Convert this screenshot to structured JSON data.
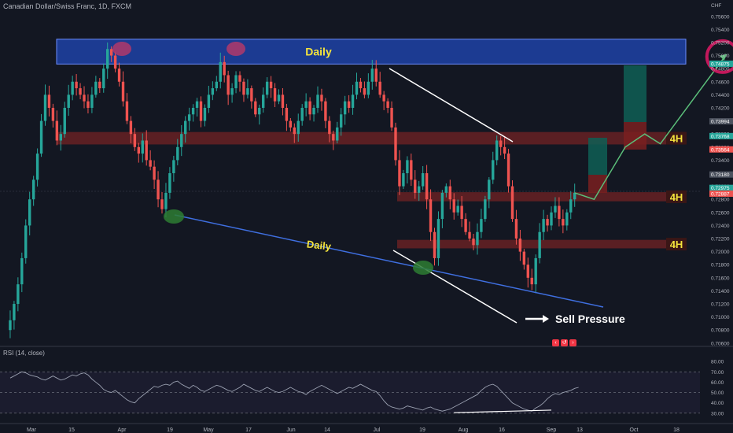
{
  "symbol": {
    "title": "Canadian Dollar/Swiss Franc, 1D, FXCM"
  },
  "rsi": {
    "title": "RSI (14, close)",
    "ticks": [
      "80.00",
      "70.00",
      "60.00",
      "50.00",
      "40.00",
      "30.00"
    ],
    "tick_values": [
      80,
      70,
      60,
      50,
      40,
      30
    ]
  },
  "colors": {
    "background": "#131722",
    "bull": "#26a69a",
    "bear": "#ef5350",
    "zone_daily": "#1e3f9e",
    "zone_4h": "#8b2525",
    "trend_white": "#ffffff",
    "trend_blue": "#3f6fe0",
    "projection": "#5bbf7a",
    "label_yellow": "#f5e43c"
  },
  "chart_data": {
    "type": "candlestick",
    "currency": "CHF",
    "x_ticks": [
      "Mar",
      "15",
      "Apr",
      "19",
      "May",
      "17",
      "Jun",
      "14",
      "Jul",
      "19",
      "Aug",
      "16",
      "Sep",
      "13",
      "Oct",
      "18"
    ],
    "y_ticks": [
      "0.75600",
      "0.75400",
      "0.75200",
      "0.75000",
      "0.74800",
      "0.74600",
      "0.74400",
      "0.74200",
      "0.74000",
      "0.73800",
      "0.73600",
      "0.73400",
      "0.73200",
      "0.73000",
      "0.72800",
      "0.72600",
      "0.72400",
      "0.72200",
      "0.72000",
      "0.71800",
      "0.71600",
      "0.71400",
      "0.71200",
      "0.71000",
      "0.70800",
      "0.70600"
    ],
    "y_tick_values": [
      0.756,
      0.754,
      0.752,
      0.75,
      0.748,
      0.746,
      0.744,
      0.742,
      0.74,
      0.738,
      0.736,
      0.734,
      0.732,
      0.73,
      0.728,
      0.726,
      0.724,
      0.722,
      0.72,
      0.718,
      0.716,
      0.714,
      0.712,
      0.71,
      0.708,
      0.706
    ],
    "ylim": [
      0.7055,
      0.7585
    ],
    "price_tags": [
      {
        "text": "0.74875",
        "value": 0.74875,
        "color": "#26a69a"
      },
      {
        "text": "0.73994",
        "value": 0.73994,
        "color": "#4c525e"
      },
      {
        "text": "0.73768",
        "value": 0.73768,
        "color": "#26a69a"
      },
      {
        "text": "0.73564",
        "value": 0.73564,
        "color": "#ef5350"
      },
      {
        "text": "0.73180",
        "value": 0.7318,
        "color": "#4c525e"
      },
      {
        "text": "0.72975",
        "value": 0.72975,
        "color": "#26a69a"
      },
      {
        "text": "0.72887",
        "value": 0.72887,
        "color": "#ef5350"
      }
    ],
    "zones": [
      {
        "label": "Daily",
        "low": 0.7487,
        "high": 0.7525,
        "color": "#1e3f9e"
      },
      {
        "label": "4H",
        "low": 0.7364,
        "high": 0.7383,
        "color": "#8b2525"
      },
      {
        "label": "4H",
        "low": 0.7277,
        "high": 0.7291,
        "color": "#8b2525"
      },
      {
        "label": "4H",
        "low": 0.7205,
        "high": 0.7218,
        "color": "#8b2525"
      }
    ],
    "annotations": {
      "daily_trendline_label": "Daily",
      "sell_pressure": "Sell Pressure"
    },
    "price_path": [
      0.708,
      0.7095,
      0.712,
      0.715,
      0.719,
      0.724,
      0.728,
      0.731,
      0.735,
      0.74,
      0.744,
      0.742,
      0.74,
      0.737,
      0.738,
      0.742,
      0.744,
      0.746,
      0.745,
      0.744,
      0.743,
      0.742,
      0.744,
      0.746,
      0.745,
      0.748,
      0.751,
      0.75,
      0.748,
      0.746,
      0.743,
      0.74,
      0.738,
      0.736,
      0.735,
      0.737,
      0.734,
      0.733,
      0.731,
      0.728,
      0.7265,
      0.729,
      0.732,
      0.734,
      0.736,
      0.738,
      0.74,
      0.741,
      0.742,
      0.743,
      0.74,
      0.742,
      0.744,
      0.745,
      0.746,
      0.749,
      0.747,
      0.744,
      0.745,
      0.747,
      0.746,
      0.744,
      0.745,
      0.743,
      0.741,
      0.742,
      0.744,
      0.746,
      0.745,
      0.743,
      0.744,
      0.742,
      0.74,
      0.739,
      0.738,
      0.74,
      0.742,
      0.743,
      0.741,
      0.742,
      0.744,
      0.743,
      0.74,
      0.738,
      0.737,
      0.739,
      0.741,
      0.743,
      0.742,
      0.744,
      0.746,
      0.745,
      0.744,
      0.746,
      0.748,
      0.746,
      0.744,
      0.743,
      0.742,
      0.739,
      0.734,
      0.73,
      0.732,
      0.734,
      0.731,
      0.729,
      0.73,
      0.732,
      0.728,
      0.723,
      0.719,
      0.725,
      0.729,
      0.73,
      0.728,
      0.726,
      0.727,
      0.725,
      0.723,
      0.722,
      0.721,
      0.723,
      0.725,
      0.728,
      0.731,
      0.734,
      0.737,
      0.736,
      0.735,
      0.73,
      0.725,
      0.722,
      0.72,
      0.718,
      0.716,
      0.715,
      0.719,
      0.723,
      0.725,
      0.724,
      0.726,
      0.727,
      0.725,
      0.724,
      0.726,
      0.728,
      0.729
    ],
    "projection": [
      {
        "date_index": 146,
        "price": 0.729
      },
      {
        "date_index": 151,
        "price": 0.728
      },
      {
        "date_index": 159,
        "price": 0.736
      },
      {
        "date_index": 164,
        "price": 0.738
      },
      {
        "date_index": 168,
        "price": 0.7365
      },
      {
        "date_index": 185,
        "price": 0.7502
      }
    ],
    "rsi_values": [
      64,
      66,
      68,
      70,
      69,
      67,
      66,
      65,
      63,
      62,
      64,
      66,
      64,
      62,
      63,
      65,
      67,
      66,
      68,
      69,
      67,
      63,
      60,
      57,
      53,
      51,
      50,
      52,
      49,
      46,
      43,
      41,
      40,
      44,
      47,
      50,
      53,
      56,
      55,
      57,
      58,
      57,
      60,
      61,
      58,
      56,
      54,
      57,
      55,
      52,
      51,
      53,
      55,
      57,
      56,
      54,
      52,
      51,
      53,
      55,
      58,
      56,
      54,
      52,
      51,
      53,
      55,
      53,
      51,
      50,
      51,
      53,
      55,
      53,
      51,
      50,
      48,
      51,
      53,
      55,
      57,
      55,
      53,
      51,
      49,
      51,
      53,
      55,
      54,
      56,
      58,
      56,
      54,
      52,
      51,
      47,
      42,
      38,
      36,
      35,
      34,
      35,
      37,
      36,
      35,
      34,
      33,
      35,
      36,
      34,
      33,
      32,
      33,
      34,
      36,
      38,
      40,
      42,
      44,
      46,
      48,
      52,
      55,
      57,
      58,
      56,
      52,
      48,
      44,
      40,
      38,
      36,
      34,
      33,
      32,
      35,
      37,
      40,
      44,
      47,
      49,
      48,
      50,
      51,
      52,
      54,
      55
    ],
    "rsi_divergence_line": [
      {
        "date_index": 115,
        "value": 30.5
      },
      {
        "date_index": 140,
        "value": 33
      }
    ]
  }
}
